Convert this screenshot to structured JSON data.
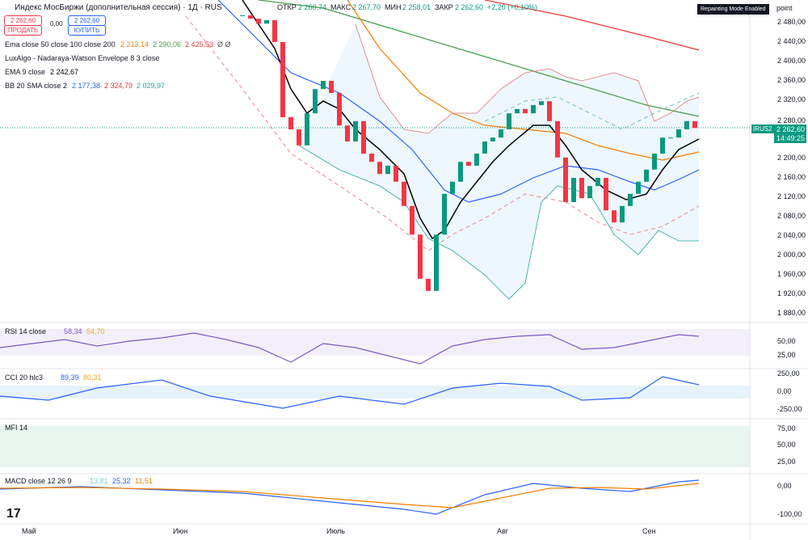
{
  "header": {
    "title": "Индекс МосБиржи (дополнительная сессия) · 1Д · RUS",
    "ohlc": [
      {
        "label": "ОТКР",
        "value": "2 260,74"
      },
      {
        "label": "МАКС",
        "value": "2 267,70"
      },
      {
        "label": "МИН",
        "value": "2 258,01"
      },
      {
        "label": "ЗАКР",
        "value": "2 262,60"
      }
    ],
    "change": "+2,20 (+0,10%)",
    "sell_price": "2 262,60",
    "sell": "ПРОДАТЬ",
    "spread": "0,00",
    "buy_price": "2 262,60",
    "buy": "КУПИТЬ",
    "badge": "Repainting Mode Enabled",
    "axis_unit": "point"
  },
  "legends": [
    {
      "name": "Ema close 50 close 100 close 200",
      "values": [
        "2 213,14",
        "2 290,06",
        "2 425,53",
        "Ø Ø"
      ]
    },
    {
      "name": "LuxAlgo - Nadaraya-Watson Envelope 8 3 close",
      "values": []
    },
    {
      "name": "EMA 9 close",
      "values": [
        "2 242,67"
      ]
    },
    {
      "name": "BB 20 SMA close 2",
      "values": [
        "2 177,38",
        "2 324,79",
        "2 029,97"
      ]
    }
  ],
  "price_axis": [
    "2 480,00",
    "2 440,00",
    "2 400,00",
    "2 360,00",
    "2 320,00",
    "2 280,00",
    "2 200,00",
    "2 160,00",
    "2 120,00",
    "2 080,00",
    "2 040,00",
    "2 000,00",
    "1 960,00",
    "1 920,00",
    "1 880,00"
  ],
  "price_tag": {
    "symbol": "IRUS2",
    "price": "2 262,60",
    "timer": "14:49:25"
  },
  "candles": [
    2495,
    2488,
    2478,
    2485,
    2440,
    2285,
    2260,
    2227,
    2293,
    2343,
    2360,
    2335,
    2268,
    2235,
    2277,
    2210,
    2193,
    2168,
    2185,
    2152,
    2102,
    2043,
    1952,
    1927,
    2043,
    2127,
    2152,
    2193,
    2185,
    2210,
    2235,
    2243,
    2260,
    2293,
    2302,
    2293,
    2310,
    2318,
    2277,
    2202,
    2110,
    2160,
    2118,
    2143,
    2160,
    2093,
    2068,
    2102,
    2127,
    2152,
    2177,
    2210,
    2243,
    2243,
    2260,
    2277,
    2262.6
  ],
  "panels": [
    {
      "name": "RSI 14 close",
      "values": [
        "58,34",
        "54,70"
      ],
      "axis": [
        "50,00",
        "25,00"
      ]
    },
    {
      "name": "CCI 20 hlc3",
      "values": [
        "89,39",
        "80,31"
      ],
      "axis": [
        "250,00",
        "0,00",
        "-250,00"
      ]
    },
    {
      "name": "MFI 14",
      "values": [],
      "axis": [
        "75,00",
        "50,00",
        "25,00"
      ]
    },
    {
      "name": "MACD close 12 26 9",
      "values": [
        "13,81",
        "25,32",
        "11,51"
      ],
      "axis": [
        "0,00",
        "-100,00"
      ]
    }
  ],
  "time_axis": [
    "Май",
    "Июн",
    "Июль",
    "Авг",
    "Сен"
  ]
}
